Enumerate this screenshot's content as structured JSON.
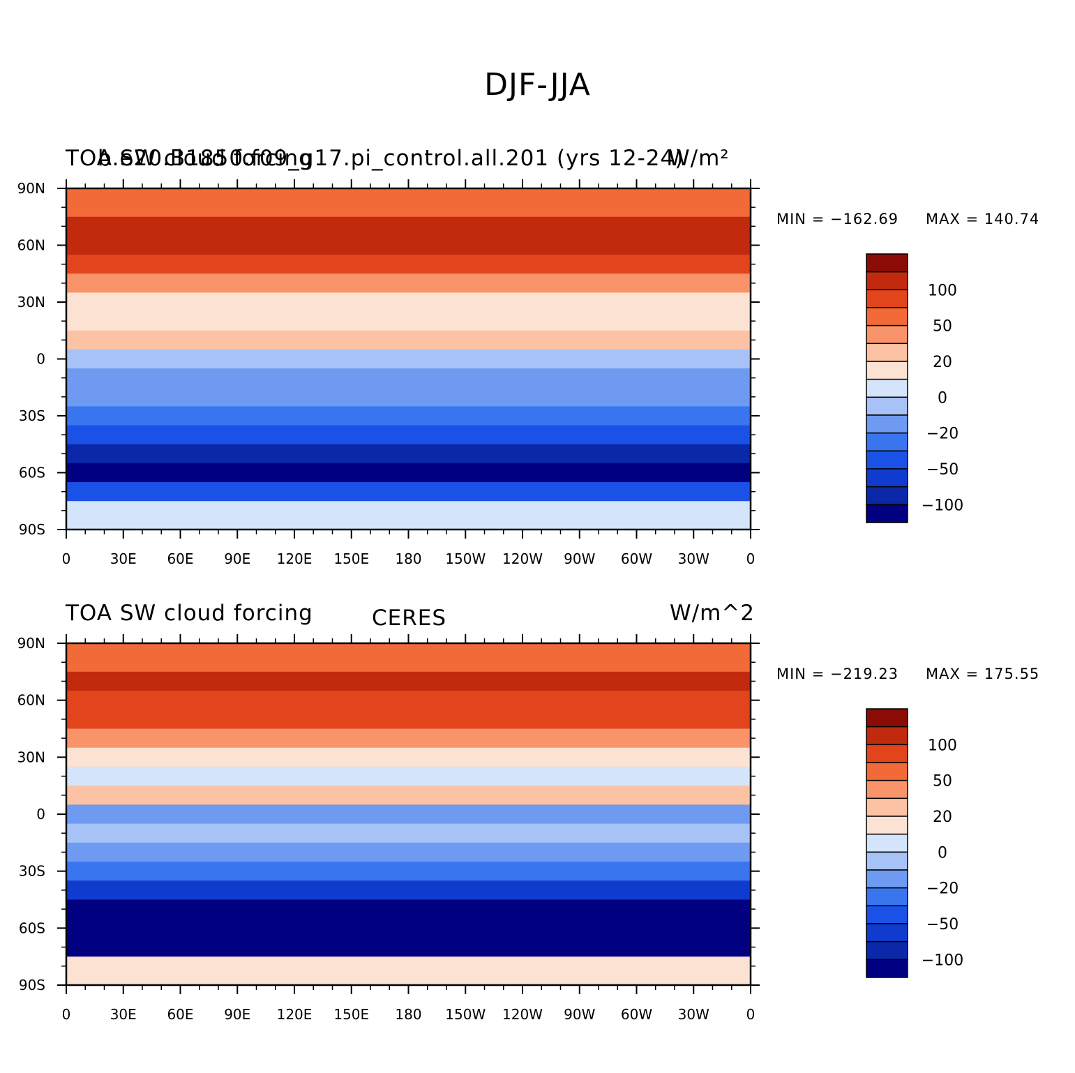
{
  "figure": {
    "main_title": "DJF-JJA"
  },
  "colors": {
    "levels": [
      "#000080",
      "#0a28a8",
      "#0f3ccf",
      "#1a52e8",
      "#3a75f0",
      "#6e9af2",
      "#a7c2f7",
      "#d3e4fb",
      "#fbe2d2",
      "#fbc2a4",
      "#f9946a",
      "#f26a38",
      "#e2441c",
      "#c22a0e",
      "#8b0c06"
    ]
  },
  "chart_data": [
    {
      "type": "heatmap",
      "map_type": "global cylindrical-equidistant contour map with coastlines",
      "title_left": "TOA SW cloud forcing",
      "title_center": "b.e20.B1850.f09_g17.pi_control.all.201 (yrs 12-24)",
      "title_right": "W/m²",
      "title_right_ascii": "W/m^2",
      "min_label": "MIN = −162.69",
      "max_label": "MAX = 140.74",
      "min": -162.69,
      "max": 140.74,
      "units": "W/m²",
      "ylim": [
        -90,
        90
      ],
      "xlim": [
        0,
        360
      ],
      "x_tick_labels": [
        "0",
        "30E",
        "60E",
        "90E",
        "120E",
        "150E",
        "180",
        "150W",
        "120W",
        "90W",
        "60W",
        "30W",
        "0"
      ],
      "y_tick_labels": [
        "90N",
        "60N",
        "30N",
        "0",
        "30S",
        "60S",
        "90S"
      ],
      "colorbar_labels": [
        "100",
        "50",
        "20",
        "0",
        "−20",
        "−50",
        "−100"
      ],
      "colorbar_level_count": 15,
      "latitude_band_means": [
        {
          "lat": 80,
          "value": 45
        },
        {
          "lat": 70,
          "value": 85
        },
        {
          "lat": 60,
          "value": 75
        },
        {
          "lat": 50,
          "value": 55
        },
        {
          "lat": 40,
          "value": 25
        },
        {
          "lat": 30,
          "value": 5
        },
        {
          "lat": 20,
          "value": 5
        },
        {
          "lat": 10,
          "value": 10
        },
        {
          "lat": 0,
          "value": -15
        },
        {
          "lat": -10,
          "value": -30
        },
        {
          "lat": -20,
          "value": -25
        },
        {
          "lat": -30,
          "value": -45
        },
        {
          "lat": -40,
          "value": -70
        },
        {
          "lat": -50,
          "value": -120
        },
        {
          "lat": -60,
          "value": -130
        },
        {
          "lat": -70,
          "value": -60
        },
        {
          "lat": -80,
          "value": -10
        }
      ]
    },
    {
      "type": "heatmap",
      "map_type": "global cylindrical-equidistant contour map with coastlines",
      "title_left": "TOA SW cloud forcing",
      "title_center": "CERES",
      "title_right": "W/m^2",
      "min_label": "MIN = −219.23",
      "max_label": "MAX = 175.55",
      "min": -219.23,
      "max": 175.55,
      "units": "W/m^2",
      "ylim": [
        -90,
        90
      ],
      "xlim": [
        0,
        360
      ],
      "x_tick_labels": [
        "0",
        "30E",
        "60E",
        "90E",
        "120E",
        "150E",
        "180",
        "150W",
        "120W",
        "90W",
        "60W",
        "30W",
        "0"
      ],
      "y_tick_labels": [
        "90N",
        "60N",
        "30N",
        "0",
        "30S",
        "60S",
        "90S"
      ],
      "colorbar_labels": [
        "100",
        "50",
        "20",
        "0",
        "−20",
        "−50",
        "−100"
      ],
      "colorbar_level_count": 15,
      "latitude_band_means": [
        {
          "lat": 80,
          "value": 35
        },
        {
          "lat": 70,
          "value": 90
        },
        {
          "lat": 60,
          "value": 70
        },
        {
          "lat": 50,
          "value": 60
        },
        {
          "lat": 40,
          "value": 20
        },
        {
          "lat": 30,
          "value": 0
        },
        {
          "lat": 20,
          "value": -5
        },
        {
          "lat": 10,
          "value": 15
        },
        {
          "lat": 0,
          "value": -25
        },
        {
          "lat": -10,
          "value": -20
        },
        {
          "lat": -20,
          "value": -30
        },
        {
          "lat": -30,
          "value": -40
        },
        {
          "lat": -40,
          "value": -80
        },
        {
          "lat": -50,
          "value": -130
        },
        {
          "lat": -60,
          "value": -150
        },
        {
          "lat": -70,
          "value": -140
        },
        {
          "lat": -80,
          "value": 5
        }
      ]
    }
  ]
}
